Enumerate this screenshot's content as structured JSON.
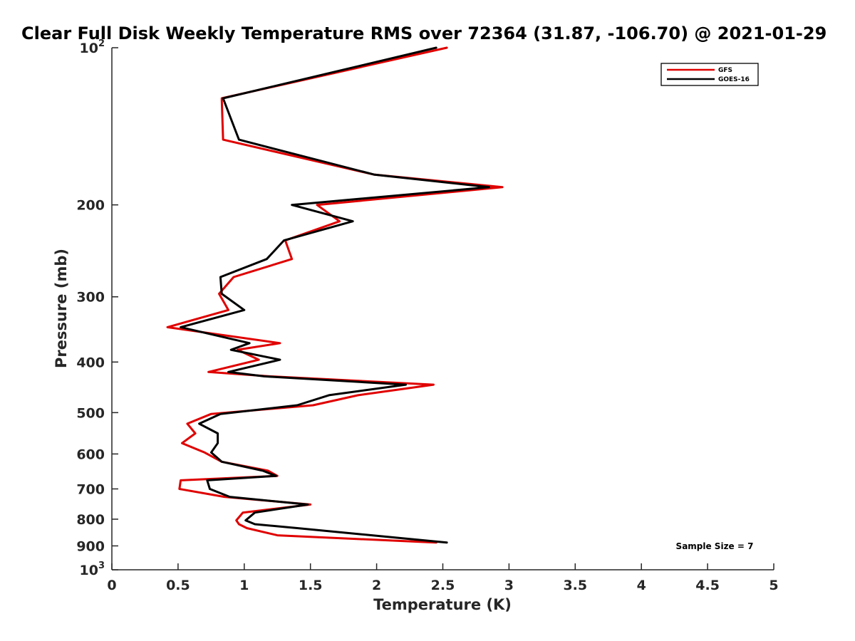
{
  "chart_data": {
    "type": "line",
    "title": "Clear Full Disk Weekly Temperature RMS over 72364 (31.87, -106.70) @ 2021-01-29",
    "xlabel": "Temperature (K)",
    "ylabel": "Pressure (mb)",
    "xlim": [
      0,
      5
    ],
    "ylim": [
      100,
      1000
    ],
    "y_scale": "log",
    "y_reversed": true,
    "grid": false,
    "legend_position": "top-right",
    "x_ticks": [
      "0",
      "0.5",
      "1",
      "1.5",
      "2",
      "2.5",
      "3",
      "3.5",
      "4",
      "4.5",
      "5"
    ],
    "y_ticks": [
      {
        "value": 100,
        "base": "10",
        "exp": "2"
      },
      {
        "value": 200,
        "label": "200"
      },
      {
        "value": 300,
        "label": "300"
      },
      {
        "value": 400,
        "label": "400"
      },
      {
        "value": 500,
        "label": "500"
      },
      {
        "value": 600,
        "label": "600"
      },
      {
        "value": 700,
        "label": "700"
      },
      {
        "value": 800,
        "label": "800"
      },
      {
        "value": 900,
        "label": "900"
      },
      {
        "value": 1000,
        "base": "10",
        "exp": "3"
      }
    ],
    "series": [
      {
        "name": "GFS",
        "color": "#e00000",
        "points": [
          [
            2.53,
            100
          ],
          [
            0.83,
            125
          ],
          [
            0.84,
            150
          ],
          [
            1.98,
            175
          ],
          [
            2.95,
            185
          ],
          [
            1.55,
            200
          ],
          [
            1.72,
            215
          ],
          [
            1.31,
            234
          ],
          [
            1.36,
            254
          ],
          [
            0.92,
            275
          ],
          [
            0.81,
            296
          ],
          [
            0.88,
            318
          ],
          [
            0.42,
            343
          ],
          [
            1.27,
            368
          ],
          [
            0.95,
            379
          ],
          [
            1.11,
            396
          ],
          [
            0.73,
            418
          ],
          [
            1.19,
            426
          ],
          [
            2.43,
            442
          ],
          [
            1.86,
            463
          ],
          [
            1.52,
            484
          ],
          [
            0.75,
            503
          ],
          [
            0.57,
            525
          ],
          [
            0.63,
            548
          ],
          [
            0.53,
            572
          ],
          [
            0.7,
            596
          ],
          [
            0.83,
            621
          ],
          [
            1.18,
            646
          ],
          [
            1.25,
            661
          ],
          [
            0.52,
            674
          ],
          [
            0.51,
            700
          ],
          [
            0.85,
            725
          ],
          [
            1.5,
            750
          ],
          [
            0.99,
            777
          ],
          [
            0.94,
            804
          ],
          [
            0.96,
            818
          ],
          [
            1.02,
            832
          ],
          [
            1.25,
            859
          ],
          [
            2.45,
            887
          ]
        ]
      },
      {
        "name": "GOES-16",
        "color": "#000000",
        "points": [
          [
            2.45,
            100
          ],
          [
            0.84,
            125
          ],
          [
            0.96,
            150
          ],
          [
            1.98,
            175
          ],
          [
            2.85,
            185
          ],
          [
            1.36,
            200
          ],
          [
            1.82,
            215
          ],
          [
            1.3,
            234
          ],
          [
            1.17,
            254
          ],
          [
            0.82,
            275
          ],
          [
            0.83,
            296
          ],
          [
            1.0,
            318
          ],
          [
            0.52,
            343
          ],
          [
            1.04,
            368
          ],
          [
            0.9,
            379
          ],
          [
            1.27,
            396
          ],
          [
            0.88,
            418
          ],
          [
            1.15,
            426
          ],
          [
            2.22,
            442
          ],
          [
            1.64,
            463
          ],
          [
            1.4,
            484
          ],
          [
            0.82,
            503
          ],
          [
            0.66,
            525
          ],
          [
            0.8,
            548
          ],
          [
            0.8,
            572
          ],
          [
            0.75,
            596
          ],
          [
            0.83,
            621
          ],
          [
            1.14,
            646
          ],
          [
            1.24,
            661
          ],
          [
            0.72,
            674
          ],
          [
            0.74,
            700
          ],
          [
            0.89,
            725
          ],
          [
            1.48,
            750
          ],
          [
            1.08,
            777
          ],
          [
            1.01,
            804
          ],
          [
            1.08,
            818
          ],
          [
            1.4,
            832
          ],
          [
            2.53,
            887
          ]
        ]
      }
    ],
    "annotation": "Sample Size = 7"
  }
}
